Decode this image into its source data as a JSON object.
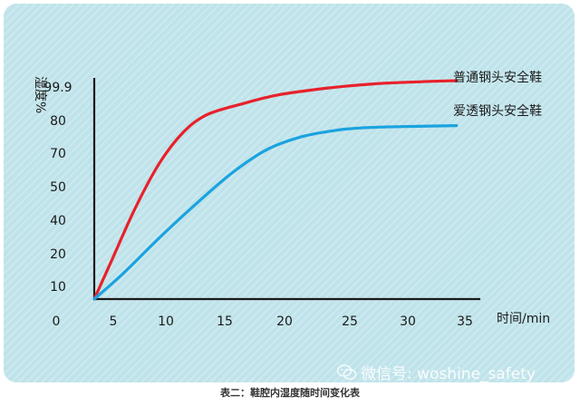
{
  "chart_data": {
    "type": "line",
    "xlabel": "时间/min",
    "ylabel": "湿度%",
    "xlim": [
      2.5,
      35
    ],
    "ylim": [
      0,
      99.9
    ],
    "x_ticks": [
      "5",
      "10",
      "15",
      "20",
      "25",
      "30",
      "35"
    ],
    "x_origin_label": "0",
    "y_ticks": [
      "10",
      "20",
      "30",
      "40",
      "50",
      "60",
      "70",
      "80",
      "99.9"
    ],
    "y_tick_values": [
      10,
      20,
      30,
      40,
      50,
      60,
      70,
      80,
      99.9
    ],
    "legend": "right",
    "grid": false,
    "series": [
      {
        "name": "普通钢头安全鞋",
        "color": "#e8212b",
        "points": [
          [
            2.5,
            0
          ],
          [
            4,
            18
          ],
          [
            6,
            42
          ],
          [
            8,
            62
          ],
          [
            10,
            76
          ],
          [
            12,
            84
          ],
          [
            15,
            89
          ],
          [
            18,
            93
          ],
          [
            22,
            96
          ],
          [
            26,
            98
          ],
          [
            30,
            99
          ],
          [
            33,
            99.5
          ]
        ]
      },
      {
        "name": "爱透钢头安全鞋",
        "color": "#1aa3e0",
        "points": [
          [
            2.5,
            0
          ],
          [
            5,
            12
          ],
          [
            8,
            28
          ],
          [
            11,
            43
          ],
          [
            14,
            57
          ],
          [
            17,
            68
          ],
          [
            20,
            74
          ],
          [
            23,
            77
          ],
          [
            25,
            78
          ],
          [
            28,
            78.5
          ],
          [
            33,
            79
          ]
        ]
      }
    ]
  },
  "caption": "表二：鞋腔内湿度随时间变化表",
  "watermark": {
    "text": "微信号: woshine_safety",
    "icon": "wechat-icon"
  }
}
